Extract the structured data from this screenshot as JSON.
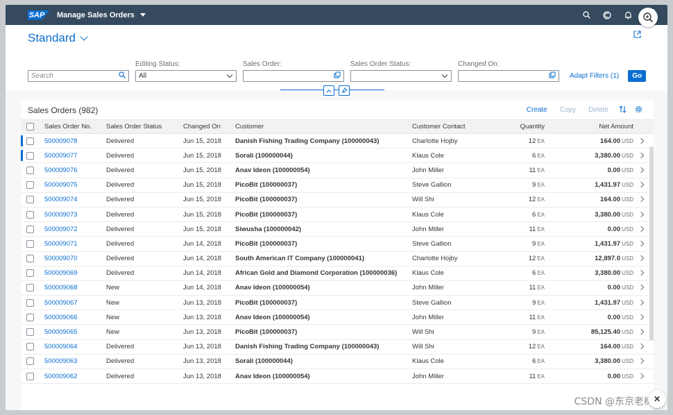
{
  "shell": {
    "logo": "SAP",
    "app_title": "Manage Sales Orders",
    "icons": [
      "search-icon",
      "copilot-icon",
      "bell-icon",
      "user-avatar"
    ]
  },
  "header": {
    "variant": "Standard",
    "filters": {
      "search_placeholder": "Search",
      "editing_status_label": "Editing Status:",
      "editing_status_value": "All",
      "sales_order_label": "Sales Order:",
      "sales_order_status_label": "Sales Order Status:",
      "changed_on_label": "Changed On:",
      "adapt_filters": "Adapt Filters (1)",
      "go": "Go"
    }
  },
  "table": {
    "title": "Sales Orders (982)",
    "actions": {
      "create": "Create",
      "copy": "Copy",
      "delete": "Delete"
    },
    "columns": [
      "Sales Order No.",
      "Sales Order Status",
      "Changed On",
      "Customer",
      "Customer Contact",
      "Quantity",
      "Net Amount"
    ],
    "rows": [
      {
        "no": "500009078",
        "status": "Delivered",
        "changed": "Jun 15, 2018",
        "customer": "Danish Fishing Trading Company (100000043)",
        "contact": "Charlotte Hojby",
        "qty": "12",
        "qty_unit": "EA",
        "amount": "164.00",
        "currency": "USD",
        "marked": true
      },
      {
        "no": "500009077",
        "status": "Delivered",
        "changed": "Jun 15, 2018",
        "customer": "Sorali (100000044)",
        "contact": "Klaus Cole",
        "qty": "6",
        "qty_unit": "EA",
        "amount": "3,380.00",
        "currency": "USD",
        "marked": true
      },
      {
        "no": "500009076",
        "status": "Delivered",
        "changed": "Jun 15, 2018",
        "customer": "Anav Ideon (100000054)",
        "contact": "John Miller",
        "qty": "11",
        "qty_unit": "EA",
        "amount": "0.00",
        "currency": "USD",
        "marked": false
      },
      {
        "no": "500009075",
        "status": "Delivered",
        "changed": "Jun 15, 2018",
        "customer": "PicoBit (100000037)",
        "contact": "Steve Gallion",
        "qty": "9",
        "qty_unit": "EA",
        "amount": "1,431.97",
        "currency": "USD",
        "marked": false
      },
      {
        "no": "500009074",
        "status": "Delivered",
        "changed": "Jun 15, 2018",
        "customer": "PicoBit (100000037)",
        "contact": "Will Shi",
        "qty": "12",
        "qty_unit": "EA",
        "amount": "164.00",
        "currency": "USD",
        "marked": false
      },
      {
        "no": "500009073",
        "status": "Delivered",
        "changed": "Jun 15, 2018",
        "customer": "PicoBit (100000037)",
        "contact": "Klaus Cole",
        "qty": "6",
        "qty_unit": "EA",
        "amount": "3,380.00",
        "currency": "USD",
        "marked": false
      },
      {
        "no": "500009072",
        "status": "Delivered",
        "changed": "Jun 15, 2018",
        "customer": "Siwusha (100000042)",
        "contact": "John Miller",
        "qty": "11",
        "qty_unit": "EA",
        "amount": "0.00",
        "currency": "USD",
        "marked": false
      },
      {
        "no": "500009071",
        "status": "Delivered",
        "changed": "Jun 14, 2018",
        "customer": "PicoBit (100000037)",
        "contact": "Steve Gallion",
        "qty": "9",
        "qty_unit": "EA",
        "amount": "1,431.97",
        "currency": "USD",
        "marked": false
      },
      {
        "no": "500009070",
        "status": "Delivered",
        "changed": "Jun 14, 2018",
        "customer": "South American IT Company (100000041)",
        "contact": "Charlotte Hojby",
        "qty": "12",
        "qty_unit": "EA",
        "amount": "12,897.0",
        "currency": "USD",
        "marked": false
      },
      {
        "no": "500009069",
        "status": "Delivered",
        "changed": "Jun 14, 2018",
        "customer": "African Gold and Diamond Corporation (100000036)",
        "contact": "Klaus Cole",
        "qty": "6",
        "qty_unit": "EA",
        "amount": "3,380.00",
        "currency": "USD",
        "marked": false
      },
      {
        "no": "500009068",
        "status": "New",
        "changed": "Jun 14, 2018",
        "customer": "Anav Ideon (100000054)",
        "contact": "John Miller",
        "qty": "11",
        "qty_unit": "EA",
        "amount": "0.00",
        "currency": "USD",
        "marked": false
      },
      {
        "no": "500009067",
        "status": "New",
        "changed": "Jun 13, 2018",
        "customer": "PicoBit (100000037)",
        "contact": "Steve Gallion",
        "qty": "9",
        "qty_unit": "EA",
        "amount": "1,431.97",
        "currency": "USD",
        "marked": false
      },
      {
        "no": "500009066",
        "status": "New",
        "changed": "Jun 13, 2018",
        "customer": "Anav Ideon (100000054)",
        "contact": "John Miller",
        "qty": "11",
        "qty_unit": "EA",
        "amount": "0.00",
        "currency": "USD",
        "marked": false
      },
      {
        "no": "500009065",
        "status": "New",
        "changed": "Jun 13, 2018",
        "customer": "PicoBit (100000037)",
        "contact": "Will Shi",
        "qty": "9",
        "qty_unit": "EA",
        "amount": "85,125.40",
        "currency": "USD",
        "marked": false
      },
      {
        "no": "500009064",
        "status": "Delivered",
        "changed": "Jun 13, 2018",
        "customer": "Danish Fishing Trading Company (100000043)",
        "contact": "Will Shi",
        "qty": "12",
        "qty_unit": "EA",
        "amount": "164.00",
        "currency": "USD",
        "marked": false
      },
      {
        "no": "500009063",
        "status": "Delivered",
        "changed": "Jun 13, 2018",
        "customer": "Sorali (100000044)",
        "contact": "Klaus Cole",
        "qty": "6",
        "qty_unit": "EA",
        "amount": "3,380.00",
        "currency": "USD",
        "marked": false
      },
      {
        "no": "500009062",
        "status": "Delivered",
        "changed": "Jun 13, 2018",
        "customer": "Anav Ideon (100000054)",
        "contact": "John Miller",
        "qty": "11",
        "qty_unit": "EA",
        "amount": "0.00",
        "currency": "USD",
        "marked": false
      }
    ]
  },
  "watermark": "CSDN @东京老树根",
  "colors": {
    "shell": "#354a5f",
    "accent": "#0a6ed1"
  }
}
